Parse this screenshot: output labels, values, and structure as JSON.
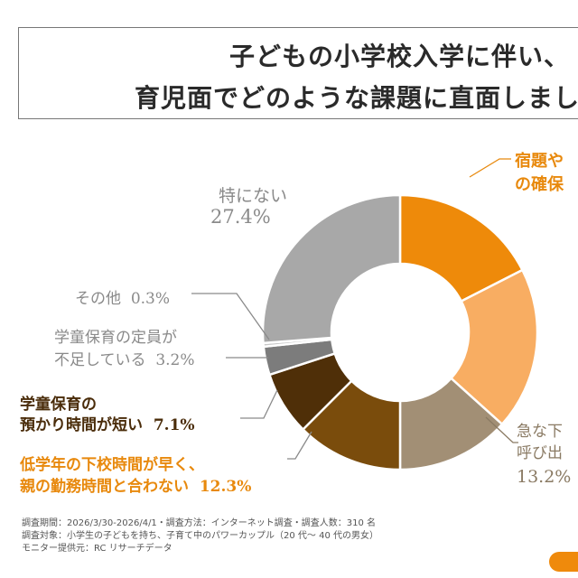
{
  "title": {
    "line1": "子どもの小学校入学に伴い、",
    "line2": "育児面でどのような課題に直面しまし"
  },
  "chart_data": {
    "type": "pie",
    "donut": true,
    "slices": [
      {
        "label": "宿題や…の確保",
        "label_lines": [
          "宿題や",
          "の確保"
        ],
        "value": null,
        "color": "#ee8a0a"
      },
      {
        "label": "",
        "label_lines": [],
        "value": null,
        "color": "#f8ad62"
      },
      {
        "label": "急な下…呼び出",
        "label_lines": [
          "急な下",
          "呼び出"
        ],
        "value": 13.2,
        "value_text": "13.2%",
        "color": "#a28f75"
      },
      {
        "label": "低学年の下校時間が早く、親の勤務時間と合わない",
        "label_lines": [
          "低学年の下校時間が早く、",
          "親の勤務時間と合わない"
        ],
        "value": 12.3,
        "value_text": "12.3%",
        "color": "#7a4c0c"
      },
      {
        "label": "学童保育の預かり時間が短い",
        "label_lines": [
          "学童保育の",
          "預かり時間が短い"
        ],
        "value": 7.1,
        "value_text": "7.1%",
        "color": "#4f2f08"
      },
      {
        "label": "学童保育の定員が不足している",
        "label_lines": [
          "学童保育の定員が",
          "不足している"
        ],
        "value": 3.2,
        "value_text": "3.2%",
        "color": "#7c7c7c"
      },
      {
        "label": "その他",
        "label_lines": [
          "その他"
        ],
        "value": 0.3,
        "value_text": "0.3%",
        "color": "#c8c8c8"
      },
      {
        "label": "特にない",
        "label_lines": [
          "特にない"
        ],
        "value": 27.4,
        "value_text": "27.4%",
        "color": "#a8a8a8"
      }
    ]
  },
  "notes": [
    "調査期間：2026/3/30-2026/4/1・調査方法：インターネット調査・調査人数：310 名",
    "調査対象：小学生の子どもを持ち、子育て中のパワーカップル（20 代～ 40 代の男女）",
    "モニター提供元：RC リサーチデータ"
  ]
}
